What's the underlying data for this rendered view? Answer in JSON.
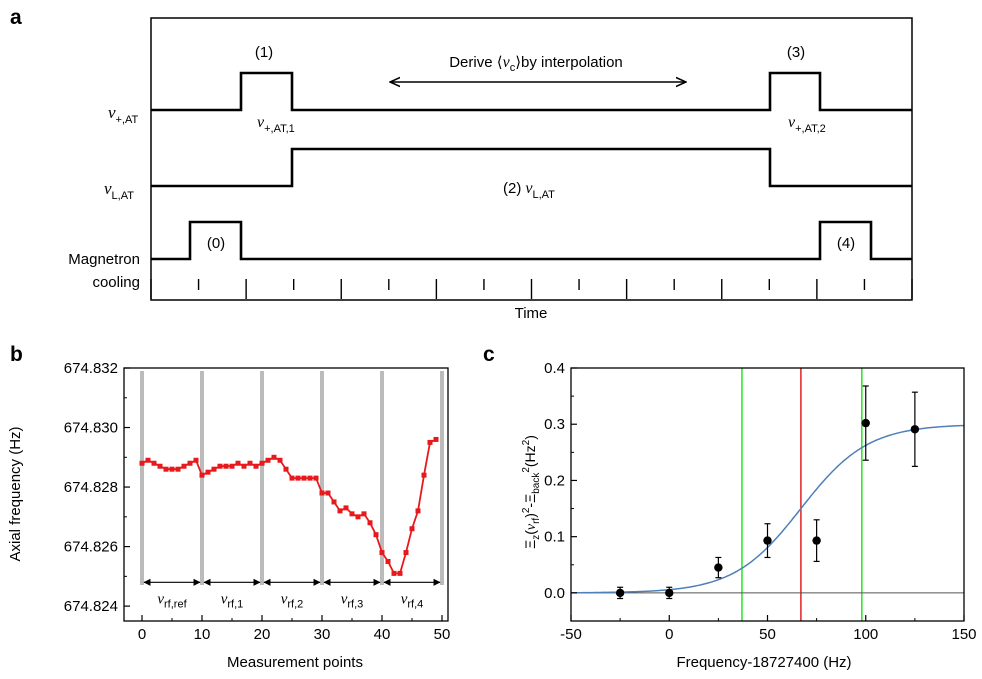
{
  "panels": {
    "a": "a",
    "b": "b",
    "c": "c"
  },
  "panel_a": {
    "type": "timing-diagram",
    "signals": [
      {
        "label_sym": "ν",
        "label_sub": "+,AT"
      },
      {
        "label_sym": "ν",
        "label_sub": "L,AT"
      },
      {
        "label_line1": "Magnetron",
        "label_line2": "cooling"
      }
    ],
    "step_labels": [
      "(0)",
      "(1)",
      "(2)",
      "(3)",
      "(4)"
    ],
    "pulse_labels": [
      {
        "sym": "ν",
        "sub": "+,AT,1"
      },
      {
        "sym": "ν",
        "sub": "+,AT,2"
      },
      {
        "sym": "ν",
        "sub": "L,AT"
      }
    ],
    "annotation": {
      "prefix": "Derive ⟨",
      "sym": "ν",
      "sub": "c",
      "suffix": "⟩by interpolation"
    },
    "xlabel": "Time"
  },
  "chart_data": [
    {
      "type": "line",
      "xlabel": "Measurement points",
      "ylabel": "Axial frequency (Hz)",
      "xlim": [
        -3,
        51
      ],
      "ylim": [
        674.8235,
        674.832
      ],
      "xticks": [
        0,
        10,
        20,
        30,
        40,
        50
      ],
      "yticks": [
        674.824,
        674.826,
        674.828,
        674.83,
        674.832
      ],
      "ytick_labels": [
        "674.824",
        "674.826",
        "674.828",
        "674.830",
        "674.832"
      ],
      "color": "#e8191c",
      "x": [
        0,
        1,
        2,
        3,
        4,
        5,
        6,
        7,
        8,
        9,
        10,
        11,
        12,
        13,
        14,
        15,
        16,
        17,
        18,
        19,
        20,
        21,
        22,
        23,
        24,
        25,
        26,
        27,
        28,
        29,
        30,
        31,
        32,
        33,
        34,
        35,
        36,
        37,
        38,
        39,
        40,
        41,
        42,
        43,
        44,
        45,
        46,
        47,
        48,
        49
      ],
      "y": [
        674.8288,
        674.8289,
        674.8288,
        674.8287,
        674.8286,
        674.8286,
        674.8286,
        674.8287,
        674.8288,
        674.8289,
        674.8284,
        674.8285,
        674.8286,
        674.8287,
        674.8287,
        674.8287,
        674.8288,
        674.8287,
        674.8288,
        674.8287,
        674.8288,
        674.8289,
        674.829,
        674.8289,
        674.8286,
        674.8283,
        674.8283,
        674.8283,
        674.8283,
        674.8283,
        674.8278,
        674.8278,
        674.8275,
        674.8272,
        674.8273,
        674.8271,
        674.827,
        674.8271,
        674.8268,
        674.8264,
        674.8258,
        674.8255,
        674.8251,
        674.8251,
        674.8258,
        674.8266,
        674.8272,
        674.8284,
        674.8295,
        674.8296
      ],
      "separators": [
        0,
        10,
        20,
        30,
        40,
        50
      ],
      "segment_labels": [
        {
          "sym": "ν",
          "sub": "rf,ref"
        },
        {
          "sym": "ν",
          "sub": "rf,1"
        },
        {
          "sym": "ν",
          "sub": "rf,2"
        },
        {
          "sym": "ν",
          "sub": "rf,3"
        },
        {
          "sym": "ν",
          "sub": "rf,4"
        }
      ],
      "segment_arrow_y": 674.8248
    },
    {
      "type": "scatter",
      "xlabel": "Frequency-18727400 (Hz)",
      "ylabel_parts": {
        "xi": "Ξ",
        "z": "z",
        "open": "(",
        "nu": "ν",
        "rf": "rf",
        "close": ")",
        "sq": "2",
        "minus": "-Ξ",
        "back": "back",
        "sq2": "2",
        "unit": "(Hz",
        "unit_sq": "2",
        "unit_close": ")"
      },
      "xlim": [
        -50,
        150
      ],
      "ylim": [
        -0.05,
        0.4
      ],
      "xticks": [
        -50,
        0,
        50,
        100,
        150
      ],
      "yticks": [
        0.0,
        0.1,
        0.2,
        0.3,
        0.4
      ],
      "ytick_labels": [
        "0.0",
        "0.1",
        "0.2",
        "0.3",
        "0.4"
      ],
      "points": [
        {
          "x": -25,
          "y": 0.0,
          "err": 0.01
        },
        {
          "x": 0,
          "y": 0.0,
          "err": 0.01
        },
        {
          "x": 25,
          "y": 0.045,
          "err": 0.018
        },
        {
          "x": 50,
          "y": 0.093,
          "err": 0.03
        },
        {
          "x": 75,
          "y": 0.093,
          "err": 0.037
        },
        {
          "x": 100,
          "y": 0.302,
          "err": 0.066
        },
        {
          "x": 125,
          "y": 0.291,
          "err": 0.066
        }
      ],
      "fit": {
        "type": "sigmoid",
        "amplitude": 0.3,
        "center": 67,
        "width": 17,
        "color": "#4f7fb8"
      },
      "vlines": [
        {
          "x": 37,
          "color": "#23e61f"
        },
        {
          "x": 67,
          "color": "#e02222"
        },
        {
          "x": 98,
          "color": "#23e61f"
        }
      ],
      "hline": {
        "y": 0.0,
        "color": "#555555"
      }
    }
  ]
}
